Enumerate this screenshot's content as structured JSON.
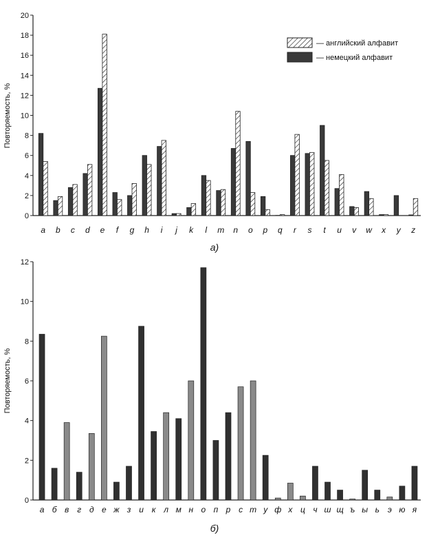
{
  "chart_data": [
    {
      "type": "bar",
      "subtitle": "а)",
      "ylabel": "Повторяемость, %",
      "xlabel": "",
      "ylim": [
        0,
        20
      ],
      "yticks": [
        0,
        2,
        4,
        6,
        8,
        10,
        12,
        14,
        16,
        18,
        20
      ],
      "grid": false,
      "legend_position": "top-right",
      "colors": {
        "german": "#3a3a3a",
        "english_pattern": "#222222"
      },
      "categories": [
        "a",
        "b",
        "c",
        "d",
        "e",
        "f",
        "g",
        "h",
        "i",
        "j",
        "k",
        "l",
        "m",
        "n",
        "o",
        "p",
        "q",
        "r",
        "s",
        "t",
        "u",
        "v",
        "w",
        "x",
        "y",
        "z"
      ],
      "series": [
        {
          "name": "— немецкий алфавит",
          "values": [
            8.2,
            1.5,
            2.8,
            4.2,
            12.7,
            2.3,
            2.0,
            6.0,
            6.9,
            0.2,
            0.8,
            4.0,
            2.5,
            6.7,
            7.4,
            1.9,
            0.02,
            6.0,
            6.2,
            9.0,
            2.7,
            0.9,
            2.4,
            0.1,
            2.0,
            0.07
          ]
        },
        {
          "name": "— английский алфавит",
          "values": [
            5.4,
            1.9,
            3.1,
            5.1,
            18.1,
            1.6,
            3.2,
            5.1,
            7.5,
            0.2,
            1.2,
            3.5,
            2.6,
            10.4,
            2.3,
            0.6,
            0.1,
            8.1,
            6.3,
            5.5,
            4.1,
            0.8,
            1.7,
            0.1,
            0.0,
            1.7
          ]
        }
      ]
    },
    {
      "type": "bar",
      "subtitle": "б)",
      "ylabel": "Повторяемость, %",
      "xlabel": "",
      "ylim": [
        0,
        12
      ],
      "yticks": [
        0,
        2,
        4,
        6,
        8,
        10,
        12
      ],
      "grid": false,
      "colors": {
        "dark": "#303030",
        "light": "#8a8a8a"
      },
      "categories": [
        "а",
        "б",
        "в",
        "г",
        "д",
        "е",
        "ж",
        "з",
        "и",
        "к",
        "л",
        "м",
        "н",
        "о",
        "п",
        "р",
        "с",
        "т",
        "у",
        "ф",
        "х",
        "ц",
        "ч",
        "ш",
        "щ",
        "ъ",
        "ы",
        "ь",
        "э",
        "ю",
        "я"
      ],
      "values": [
        8.35,
        1.6,
        3.9,
        1.4,
        3.35,
        8.25,
        0.9,
        1.7,
        8.75,
        3.45,
        4.4,
        4.1,
        6.0,
        11.7,
        3.0,
        4.4,
        5.7,
        6.0,
        2.25,
        0.1,
        0.85,
        0.2,
        1.7,
        0.9,
        0.5,
        0.05,
        1.5,
        0.5,
        0.15,
        0.7,
        1.7
      ],
      "shades": [
        "dark",
        "dark",
        "light",
        "dark",
        "light",
        "light",
        "dark",
        "dark",
        "dark",
        "dark",
        "light",
        "dark",
        "light",
        "dark",
        "dark",
        "dark",
        "light",
        "light",
        "dark",
        "light",
        "light",
        "light",
        "dark",
        "dark",
        "dark",
        "light",
        "dark",
        "dark",
        "light",
        "dark",
        "dark"
      ]
    }
  ]
}
